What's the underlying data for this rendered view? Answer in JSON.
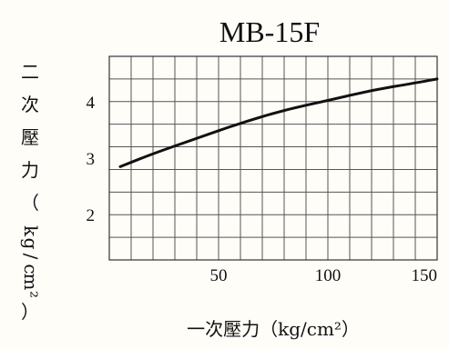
{
  "chart_data": {
    "type": "line",
    "title": "MB-15F",
    "xlabel": "一次壓力（kg/cm²）",
    "ylabel": "二次壓力（kg/cm²）",
    "x_ticks": [
      "50",
      "100",
      "150"
    ],
    "x_tick_values": [
      50,
      100,
      150
    ],
    "y_ticks": [
      "2",
      "3",
      "4"
    ],
    "y_tick_values": [
      2,
      3,
      4
    ],
    "xlim": [
      0,
      150
    ],
    "ylim": [
      1.2,
      4.8
    ],
    "grid": true,
    "series": [
      {
        "x": [
          5,
          20,
          40,
          60,
          80,
          100,
          120,
          140,
          150
        ],
        "y": [
          2.85,
          3.08,
          3.35,
          3.62,
          3.85,
          4.02,
          4.2,
          4.33,
          4.4
        ]
      }
    ]
  }
}
